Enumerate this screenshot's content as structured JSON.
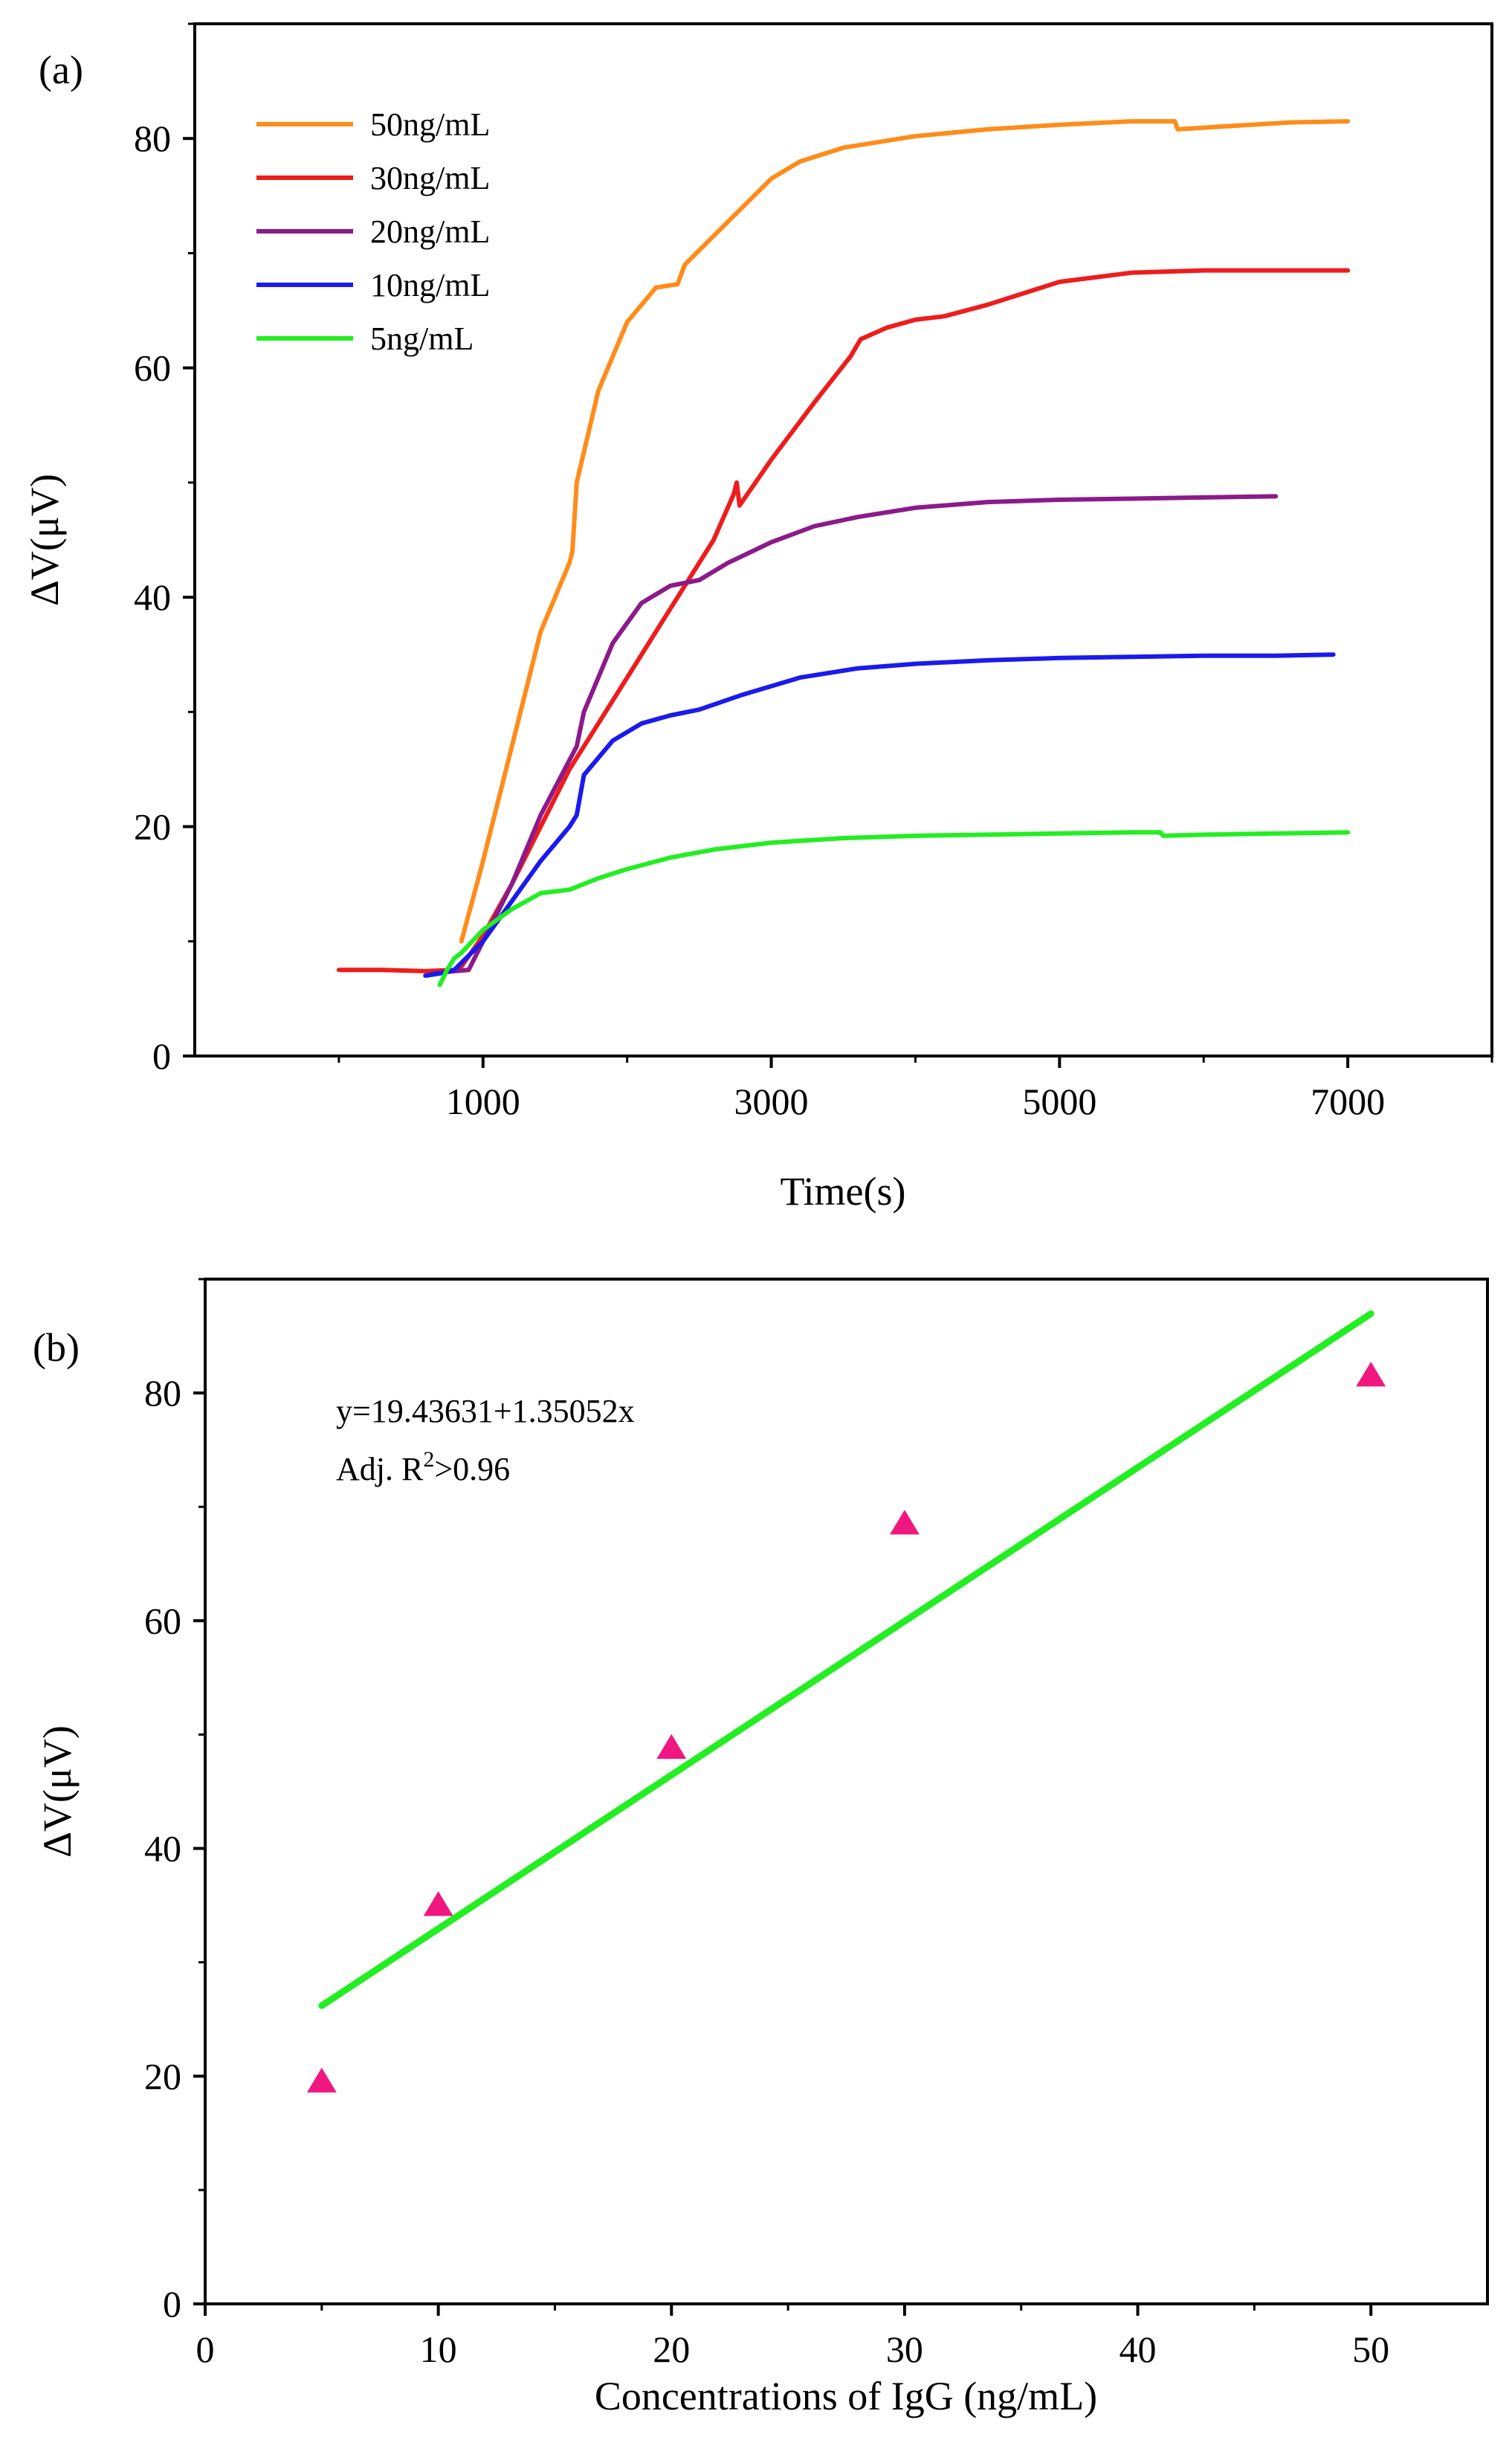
{
  "chart_data": [
    {
      "type": "line",
      "panel_label": "(a)",
      "xlabel": "Time(s)",
      "ylabel": "ΔV(μV)",
      "xlim": [
        -1000,
        8000
      ],
      "ylim": [
        0,
        90
      ],
      "x_ticks": [
        1000,
        3000,
        5000,
        7000
      ],
      "x_tick_labels": [
        "1000",
        "3000",
        "5000",
        "7000"
      ],
      "y_ticks": [
        0,
        20,
        40,
        60,
        80
      ],
      "y_tick_labels": [
        "0",
        "20",
        "40",
        "60",
        "80"
      ],
      "legend_position": "top-left",
      "series": [
        {
          "name": "50ng/mL",
          "color": "#ff8c1a",
          "points": [
            [
              850,
              10
            ],
            [
              1000,
              17
            ],
            [
              1200,
              27
            ],
            [
              1400,
              37
            ],
            [
              1600,
              43
            ],
            [
              1620,
              44
            ],
            [
              1650,
              50
            ],
            [
              1800,
              58
            ],
            [
              2000,
              64
            ],
            [
              2200,
              67
            ],
            [
              2350,
              67.3
            ],
            [
              2400,
              69
            ],
            [
              2600,
              71.5
            ],
            [
              2800,
              74
            ],
            [
              3000,
              76.5
            ],
            [
              3200,
              78
            ],
            [
              3500,
              79.2
            ],
            [
              4000,
              80.2
            ],
            [
              4500,
              80.8
            ],
            [
              5000,
              81.2
            ],
            [
              5500,
              81.5
            ],
            [
              5800,
              81.5
            ],
            [
              5820,
              80.8
            ],
            [
              6200,
              81.1
            ],
            [
              6600,
              81.4
            ],
            [
              7000,
              81.5
            ]
          ]
        },
        {
          "name": "30ng/mL",
          "color": "#ee1c1c",
          "points": [
            [
              0,
              7.5
            ],
            [
              300,
              7.5
            ],
            [
              600,
              7.4
            ],
            [
              800,
              7.5
            ],
            [
              850,
              7.8
            ],
            [
              1000,
              10.5
            ],
            [
              1200,
              15
            ],
            [
              1400,
              20
            ],
            [
              1600,
              25
            ],
            [
              1800,
              29
            ],
            [
              2000,
              33
            ],
            [
              2200,
              37
            ],
            [
              2400,
              41
            ],
            [
              2600,
              45
            ],
            [
              2740,
              49
            ],
            [
              2760,
              50
            ],
            [
              2780,
              48
            ],
            [
              3000,
              52
            ],
            [
              3300,
              57
            ],
            [
              3550,
              61
            ],
            [
              3620,
              62.5
            ],
            [
              3800,
              63.5
            ],
            [
              4000,
              64.2
            ],
            [
              4200,
              64.5
            ],
            [
              4500,
              65.5
            ],
            [
              5000,
              67.5
            ],
            [
              5500,
              68.3
            ],
            [
              6000,
              68.5
            ],
            [
              6500,
              68.5
            ],
            [
              7000,
              68.5
            ]
          ]
        },
        {
          "name": "20ng/mL",
          "color": "#8b1a8b",
          "points": [
            [
              650,
              7.2
            ],
            [
              800,
              7.4
            ],
            [
              900,
              7.5
            ],
            [
              1000,
              10
            ],
            [
              1200,
              15
            ],
            [
              1400,
              21
            ],
            [
              1650,
              27
            ],
            [
              1700,
              30
            ],
            [
              1900,
              36
            ],
            [
              2100,
              39.5
            ],
            [
              2300,
              41
            ],
            [
              2500,
              41.5
            ],
            [
              2700,
              43
            ],
            [
              3000,
              44.8
            ],
            [
              3300,
              46.2
            ],
            [
              3600,
              47
            ],
            [
              4000,
              47.8
            ],
            [
              4500,
              48.3
            ],
            [
              5000,
              48.5
            ],
            [
              5500,
              48.6
            ],
            [
              6000,
              48.7
            ],
            [
              6500,
              48.8
            ]
          ]
        },
        {
          "name": "10ng/mL",
          "color": "#1a1aee",
          "points": [
            [
              600,
              7
            ],
            [
              700,
              7.2
            ],
            [
              800,
              7.5
            ],
            [
              1000,
              10
            ],
            [
              1200,
              13.5
            ],
            [
              1400,
              17
            ],
            [
              1600,
              20
            ],
            [
              1650,
              21
            ],
            [
              1700,
              24.5
            ],
            [
              1900,
              27.5
            ],
            [
              2100,
              29
            ],
            [
              2300,
              29.7
            ],
            [
              2500,
              30.2
            ],
            [
              2800,
              31.5
            ],
            [
              3200,
              33
            ],
            [
              3600,
              33.8
            ],
            [
              4000,
              34.2
            ],
            [
              4500,
              34.5
            ],
            [
              5000,
              34.7
            ],
            [
              5500,
              34.8
            ],
            [
              6000,
              34.9
            ],
            [
              6500,
              34.9
            ],
            [
              6900,
              35
            ]
          ]
        },
        {
          "name": "5ng/mL",
          "color": "#22ee22",
          "points": [
            [
              700,
              6.2
            ],
            [
              750,
              7.5
            ],
            [
              800,
              8.5
            ],
            [
              850,
              9
            ],
            [
              1000,
              11
            ],
            [
              1200,
              12.8
            ],
            [
              1400,
              14.2
            ],
            [
              1600,
              14.5
            ],
            [
              1800,
              15.5
            ],
            [
              2000,
              16.3
            ],
            [
              2300,
              17.3
            ],
            [
              2600,
              18
            ],
            [
              3000,
              18.6
            ],
            [
              3500,
              19
            ],
            [
              4000,
              19.2
            ],
            [
              4500,
              19.3
            ],
            [
              5000,
              19.4
            ],
            [
              5500,
              19.5
            ],
            [
              5700,
              19.5
            ],
            [
              5720,
              19.2
            ],
            [
              6000,
              19.3
            ],
            [
              6500,
              19.4
            ],
            [
              7000,
              19.5
            ]
          ]
        }
      ]
    },
    {
      "type": "scatter",
      "panel_label": "(b)",
      "xlabel": "Concentrations of IgG (ng/mL)",
      "ylabel": "ΔV(μV)",
      "xlim": [
        0,
        55
      ],
      "ylim": [
        0,
        90
      ],
      "x_ticks": [
        0,
        10,
        20,
        30,
        40,
        50
      ],
      "x_tick_labels": [
        "0",
        "10",
        "20",
        "30",
        "40",
        "50"
      ],
      "y_ticks": [
        0,
        20,
        40,
        60,
        80
      ],
      "y_tick_labels": [
        "0",
        "20",
        "40",
        "60",
        "80"
      ],
      "points": {
        "x": [
          5,
          10,
          20,
          30,
          50
        ],
        "y": [
          19.5,
          35,
          48.8,
          68.5,
          81.5
        ],
        "color": "#f01880",
        "marker": "triangle"
      },
      "fit": {
        "x": [
          5,
          50
        ],
        "intercept": 19.43631,
        "slope": 1.35052,
        "color": "#22ee22"
      },
      "equation_text": "y=19.43631+1.35052x",
      "r2_prefix": "Adj. R",
      "r2_sup": "2",
      "r2_suffix": ">0.96"
    }
  ]
}
